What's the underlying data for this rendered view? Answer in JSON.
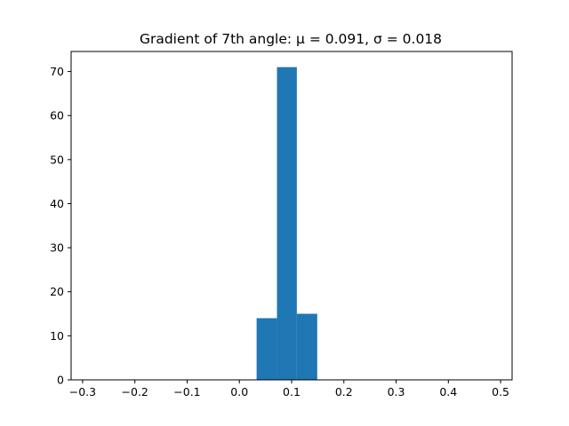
{
  "chart_data": {
    "type": "bar",
    "title": "Gradient of 7th angle: μ = 0.091, σ = 0.018",
    "xlabel": "",
    "ylabel": "",
    "bins": [
      {
        "x0": 0.033,
        "x1": 0.072,
        "count": 14
      },
      {
        "x0": 0.072,
        "x1": 0.11,
        "count": 71
      },
      {
        "x0": 0.11,
        "x1": 0.149,
        "count": 15
      }
    ],
    "xlim": [
      -0.322,
      0.522
    ],
    "ylim": [
      0,
      74.55
    ],
    "xticks": [
      -0.3,
      -0.2,
      -0.1,
      0.0,
      0.1,
      0.2,
      0.3,
      0.4,
      0.5
    ],
    "xtick_labels": [
      "−0.3",
      "−0.2",
      "−0.1",
      "0.0",
      "0.1",
      "0.2",
      "0.3",
      "0.4",
      "0.5"
    ],
    "yticks": [
      0,
      10,
      20,
      30,
      40,
      50,
      60,
      70
    ],
    "ytick_labels": [
      "0",
      "10",
      "20",
      "30",
      "40",
      "50",
      "60",
      "70"
    ],
    "bar_color": "#1f77b4",
    "grid": false,
    "legend": "none"
  }
}
